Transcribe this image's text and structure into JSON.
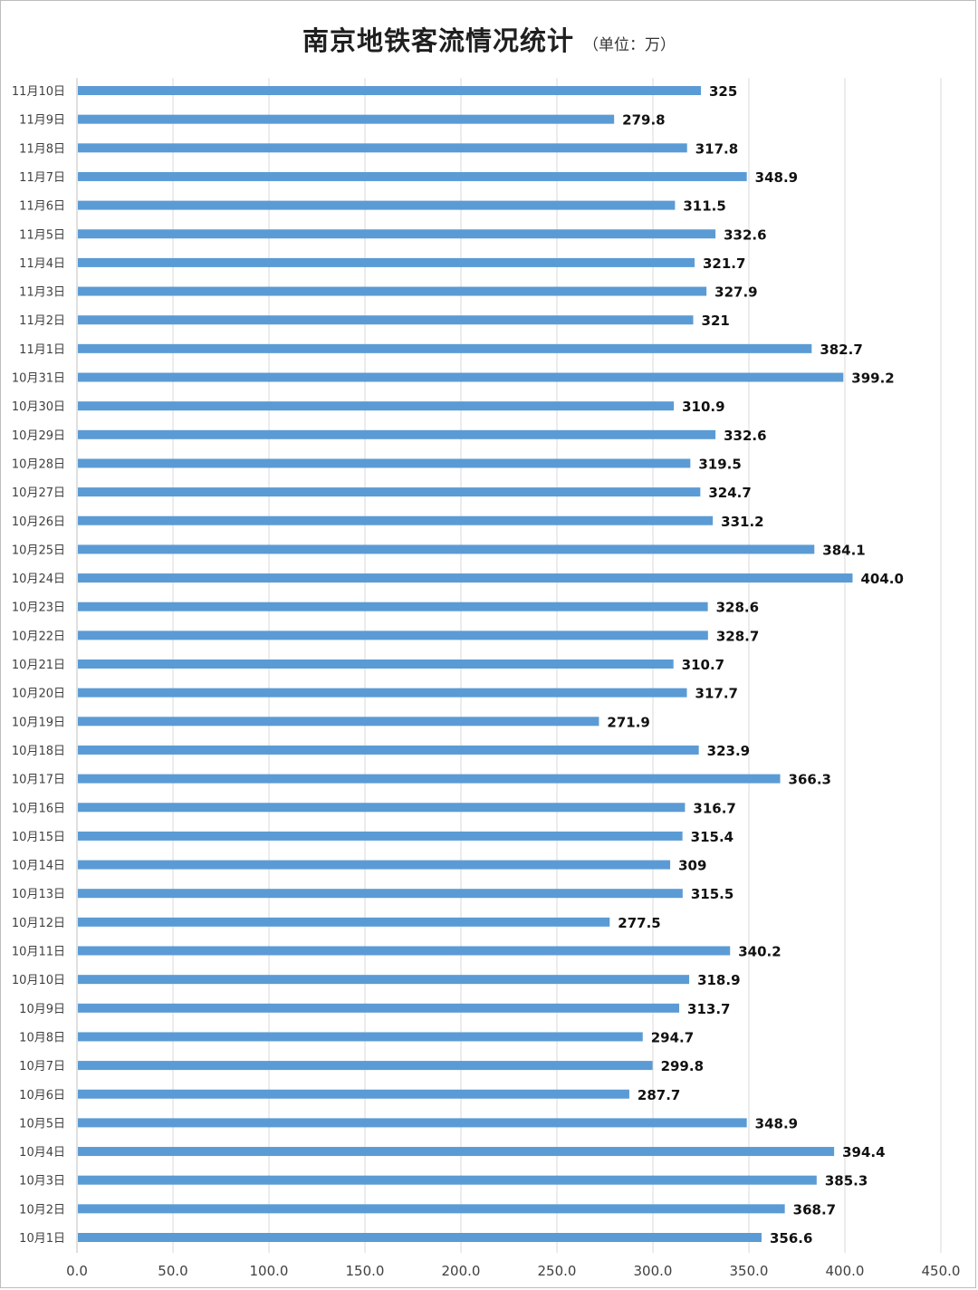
{
  "title": "南京地铁客流情况统计",
  "unit": "（单位：万）",
  "chart_data": {
    "type": "bar",
    "orientation": "horizontal",
    "title": "南京地铁客流情况统计",
    "subtitle": "（单位：万）",
    "xlim": [
      0,
      450
    ],
    "x_ticks": [
      "0.0",
      "50.0",
      "100.0",
      "150.0",
      "200.0",
      "250.0",
      "300.0",
      "350.0",
      "400.0",
      "450.0"
    ],
    "x_tick_values": [
      0,
      50,
      100,
      150,
      200,
      250,
      300,
      350,
      400,
      450
    ],
    "grid": "vertical",
    "bar_color": "#5b9bd5",
    "categories": [
      "11月10日",
      "11月9日",
      "11月8日",
      "11月7日",
      "11月6日",
      "11月5日",
      "11月4日",
      "11月3日",
      "11月2日",
      "11月1日",
      "10月31日",
      "10月30日",
      "10月29日",
      "10月28日",
      "10月27日",
      "10月26日",
      "10月25日",
      "10月24日",
      "10月23日",
      "10月22日",
      "10月21日",
      "10月20日",
      "10月19日",
      "10月18日",
      "10月17日",
      "10月16日",
      "10月15日",
      "10月14日",
      "10月13日",
      "10月12日",
      "10月11日",
      "10月10日",
      "10月9日",
      "10月8日",
      "10月7日",
      "10月6日",
      "10月5日",
      "10月4日",
      "10月3日",
      "10月2日",
      "10月1日"
    ],
    "values": [
      325,
      279.8,
      317.8,
      348.9,
      311.5,
      332.6,
      321.7,
      327.9,
      321,
      382.7,
      399.2,
      310.9,
      332.6,
      319.5,
      324.7,
      331.2,
      384.1,
      404.0,
      328.6,
      328.7,
      310.7,
      317.7,
      271.9,
      323.9,
      366.3,
      316.7,
      315.4,
      309,
      315.5,
      277.5,
      340.2,
      318.9,
      313.7,
      294.7,
      299.8,
      287.7,
      348.9,
      394.4,
      385.3,
      368.7,
      356.6
    ],
    "value_labels": [
      "325",
      "279.8",
      "317.8",
      "348.9",
      "311.5",
      "332.6",
      "321.7",
      "327.9",
      "321",
      "382.7",
      "399.2",
      "310.9",
      "332.6",
      "319.5",
      "324.7",
      "331.2",
      "384.1",
      "404.0",
      "328.6",
      "328.7",
      "310.7",
      "317.7",
      "271.9",
      "323.9",
      "366.3",
      "316.7",
      "315.4",
      "309",
      "315.5",
      "277.5",
      "340.2",
      "318.9",
      "313.7",
      "294.7",
      "299.8",
      "287.7",
      "348.9",
      "394.4",
      "385.3",
      "368.7",
      "356.6"
    ]
  }
}
